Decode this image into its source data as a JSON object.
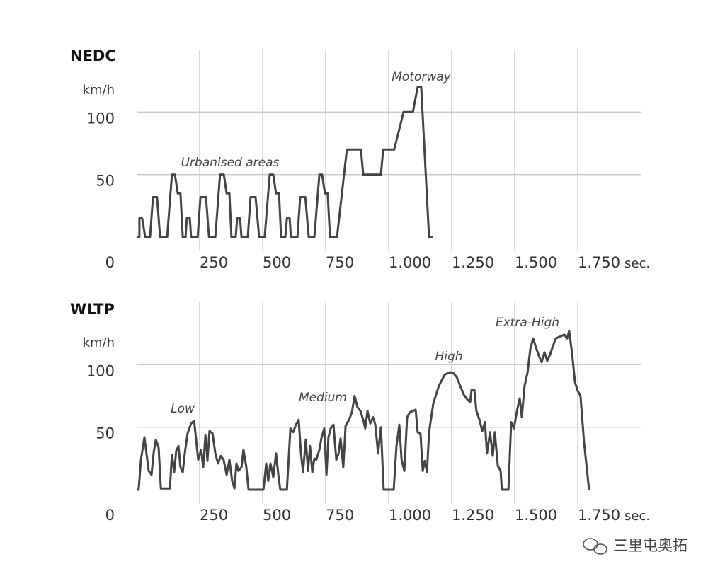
{
  "chart_data": [
    {
      "type": "line",
      "title": "NEDC",
      "y_label": "km/h",
      "x_label": "sec.",
      "color": "#444444",
      "grid": true,
      "xlim": [
        0,
        2000
      ],
      "ylim": [
        0,
        150
      ],
      "xticks": [
        250,
        500,
        750,
        {
          "value": 1000,
          "label": "1.000"
        },
        {
          "value": 1250,
          "label": "1.250"
        },
        {
          "value": 1500,
          "label": "1.500"
        },
        {
          "value": 1750,
          "label": "1.750"
        }
      ],
      "yticks": [
        0,
        50,
        100
      ],
      "annotations": [
        "Urbanised areas",
        "Motorway"
      ],
      "x": [
        0,
        11,
        11,
        22,
        34,
        53,
        65,
        81,
        93,
        121,
        140,
        152,
        163,
        174,
        183,
        194,
        199,
        211,
        216,
        242,
        253,
        275,
        287,
        312,
        331,
        346,
        357,
        368,
        376,
        393,
        399,
        410,
        416,
        441,
        452,
        472,
        486,
        508,
        528,
        542,
        553,
        565,
        573,
        590,
        596,
        607,
        612,
        638,
        649,
        669,
        683,
        705,
        725,
        736,
        747,
        758,
        767,
        795,
        834,
        890,
        899,
        969,
        978,
        1022,
        1059,
        1096,
        1115,
        1129,
        1160,
        1177
      ],
      "values": [
        0,
        0,
        15,
        15,
        0,
        0,
        32,
        32,
        0,
        0,
        50,
        50,
        35,
        35,
        0,
        0,
        15,
        15,
        0,
        0,
        32,
        32,
        0,
        0,
        50,
        50,
        35,
        35,
        0,
        0,
        15,
        15,
        0,
        0,
        32,
        32,
        0,
        0,
        50,
        50,
        35,
        35,
        0,
        0,
        15,
        15,
        0,
        0,
        32,
        32,
        0,
        0,
        50,
        50,
        35,
        35,
        0,
        0,
        70,
        70,
        50,
        50,
        70,
        70,
        100,
        100,
        120,
        120,
        0,
        0
      ]
    },
    {
      "type": "line",
      "title": "WLTP",
      "y_label": "km/h",
      "x_label": "sec.",
      "color": "#444444",
      "grid": true,
      "xlim": [
        0,
        2000
      ],
      "ylim": [
        0,
        150
      ],
      "xticks": [
        250,
        500,
        750,
        {
          "value": 1000,
          "label": "1.000"
        },
        {
          "value": 1250,
          "label": "1.250"
        },
        {
          "value": 1500,
          "label": "1.500"
        },
        {
          "value": 1750,
          "label": "1.750"
        }
      ],
      "yticks": [
        0,
        50,
        100
      ],
      "annotations": [
        "Low",
        "Medium",
        "High",
        "Extra-High"
      ],
      "x": [
        0,
        8,
        17,
        31,
        39,
        48,
        59,
        67,
        76,
        87,
        96,
        132,
        140,
        149,
        157,
        166,
        174,
        183,
        191,
        202,
        216,
        228,
        236,
        244,
        256,
        264,
        273,
        281,
        289,
        301,
        312,
        323,
        334,
        345,
        357,
        368,
        379,
        388,
        396,
        404,
        416,
        424,
        435,
        444,
        503,
        514,
        522,
        531,
        542,
        553,
        562,
        570,
        596,
        610,
        621,
        632,
        643,
        652,
        660,
        671,
        680,
        688,
        697,
        705,
        713,
        725,
        733,
        744,
        753,
        761,
        770,
        781,
        792,
        801,
        809,
        820,
        829,
        843,
        854,
        865,
        876,
        888,
        899,
        907,
        916,
        927,
        938,
        947,
        958,
        969,
        980,
        1020,
        1031,
        1042,
        1051,
        1062,
        1073,
        1084,
        1096,
        1107,
        1115,
        1126,
        1135,
        1143,
        1152,
        1160,
        1177,
        1199,
        1222,
        1244,
        1258,
        1270,
        1284,
        1298,
        1312,
        1323,
        1329,
        1340,
        1348,
        1360,
        1371,
        1382,
        1390,
        1402,
        1413,
        1421,
        1433,
        1444,
        1449,
        1475,
        1486,
        1497,
        1508,
        1520,
        1528,
        1539,
        1551,
        1562,
        1573,
        1584,
        1596,
        1607,
        1618,
        1629,
        1640,
        1652,
        1663,
        1674,
        1685,
        1697,
        1708,
        1716,
        1728,
        1739,
        1750,
        1761,
        1775,
        1787,
        1795
      ],
      "values": [
        0,
        0,
        24,
        42,
        29,
        15,
        12,
        29,
        40,
        34,
        1,
        1,
        28,
        14,
        31,
        35,
        18,
        14,
        29,
        45,
        53,
        55,
        40,
        24,
        32,
        18,
        44,
        23,
        47,
        45,
        29,
        21,
        27,
        24,
        12,
        24,
        7,
        1,
        21,
        15,
        18,
        32,
        18,
        0,
        0,
        21,
        7,
        21,
        10,
        29,
        12,
        0,
        0,
        49,
        46,
        52,
        56,
        29,
        14,
        40,
        15,
        35,
        14,
        25,
        24,
        32,
        41,
        49,
        12,
        42,
        49,
        52,
        24,
        29,
        41,
        18,
        51,
        56,
        62,
        75,
        66,
        63,
        56,
        49,
        63,
        53,
        58,
        52,
        29,
        50,
        0,
        0,
        35,
        52,
        24,
        15,
        58,
        62,
        63,
        64,
        46,
        45,
        15,
        23,
        14,
        46,
        69,
        83,
        92,
        94,
        93,
        90,
        83,
        76,
        72,
        70,
        80,
        80,
        63,
        56,
        47,
        54,
        29,
        46,
        27,
        46,
        19,
        15,
        0,
        0,
        54,
        49,
        62,
        73,
        58,
        83,
        94,
        113,
        121,
        114,
        107,
        102,
        110,
        103,
        108,
        115,
        121,
        122,
        123,
        124,
        121,
        127,
        108,
        86,
        79,
        75,
        38,
        15,
        0
      ]
    }
  ],
  "watermark": "三里屯奥拓"
}
